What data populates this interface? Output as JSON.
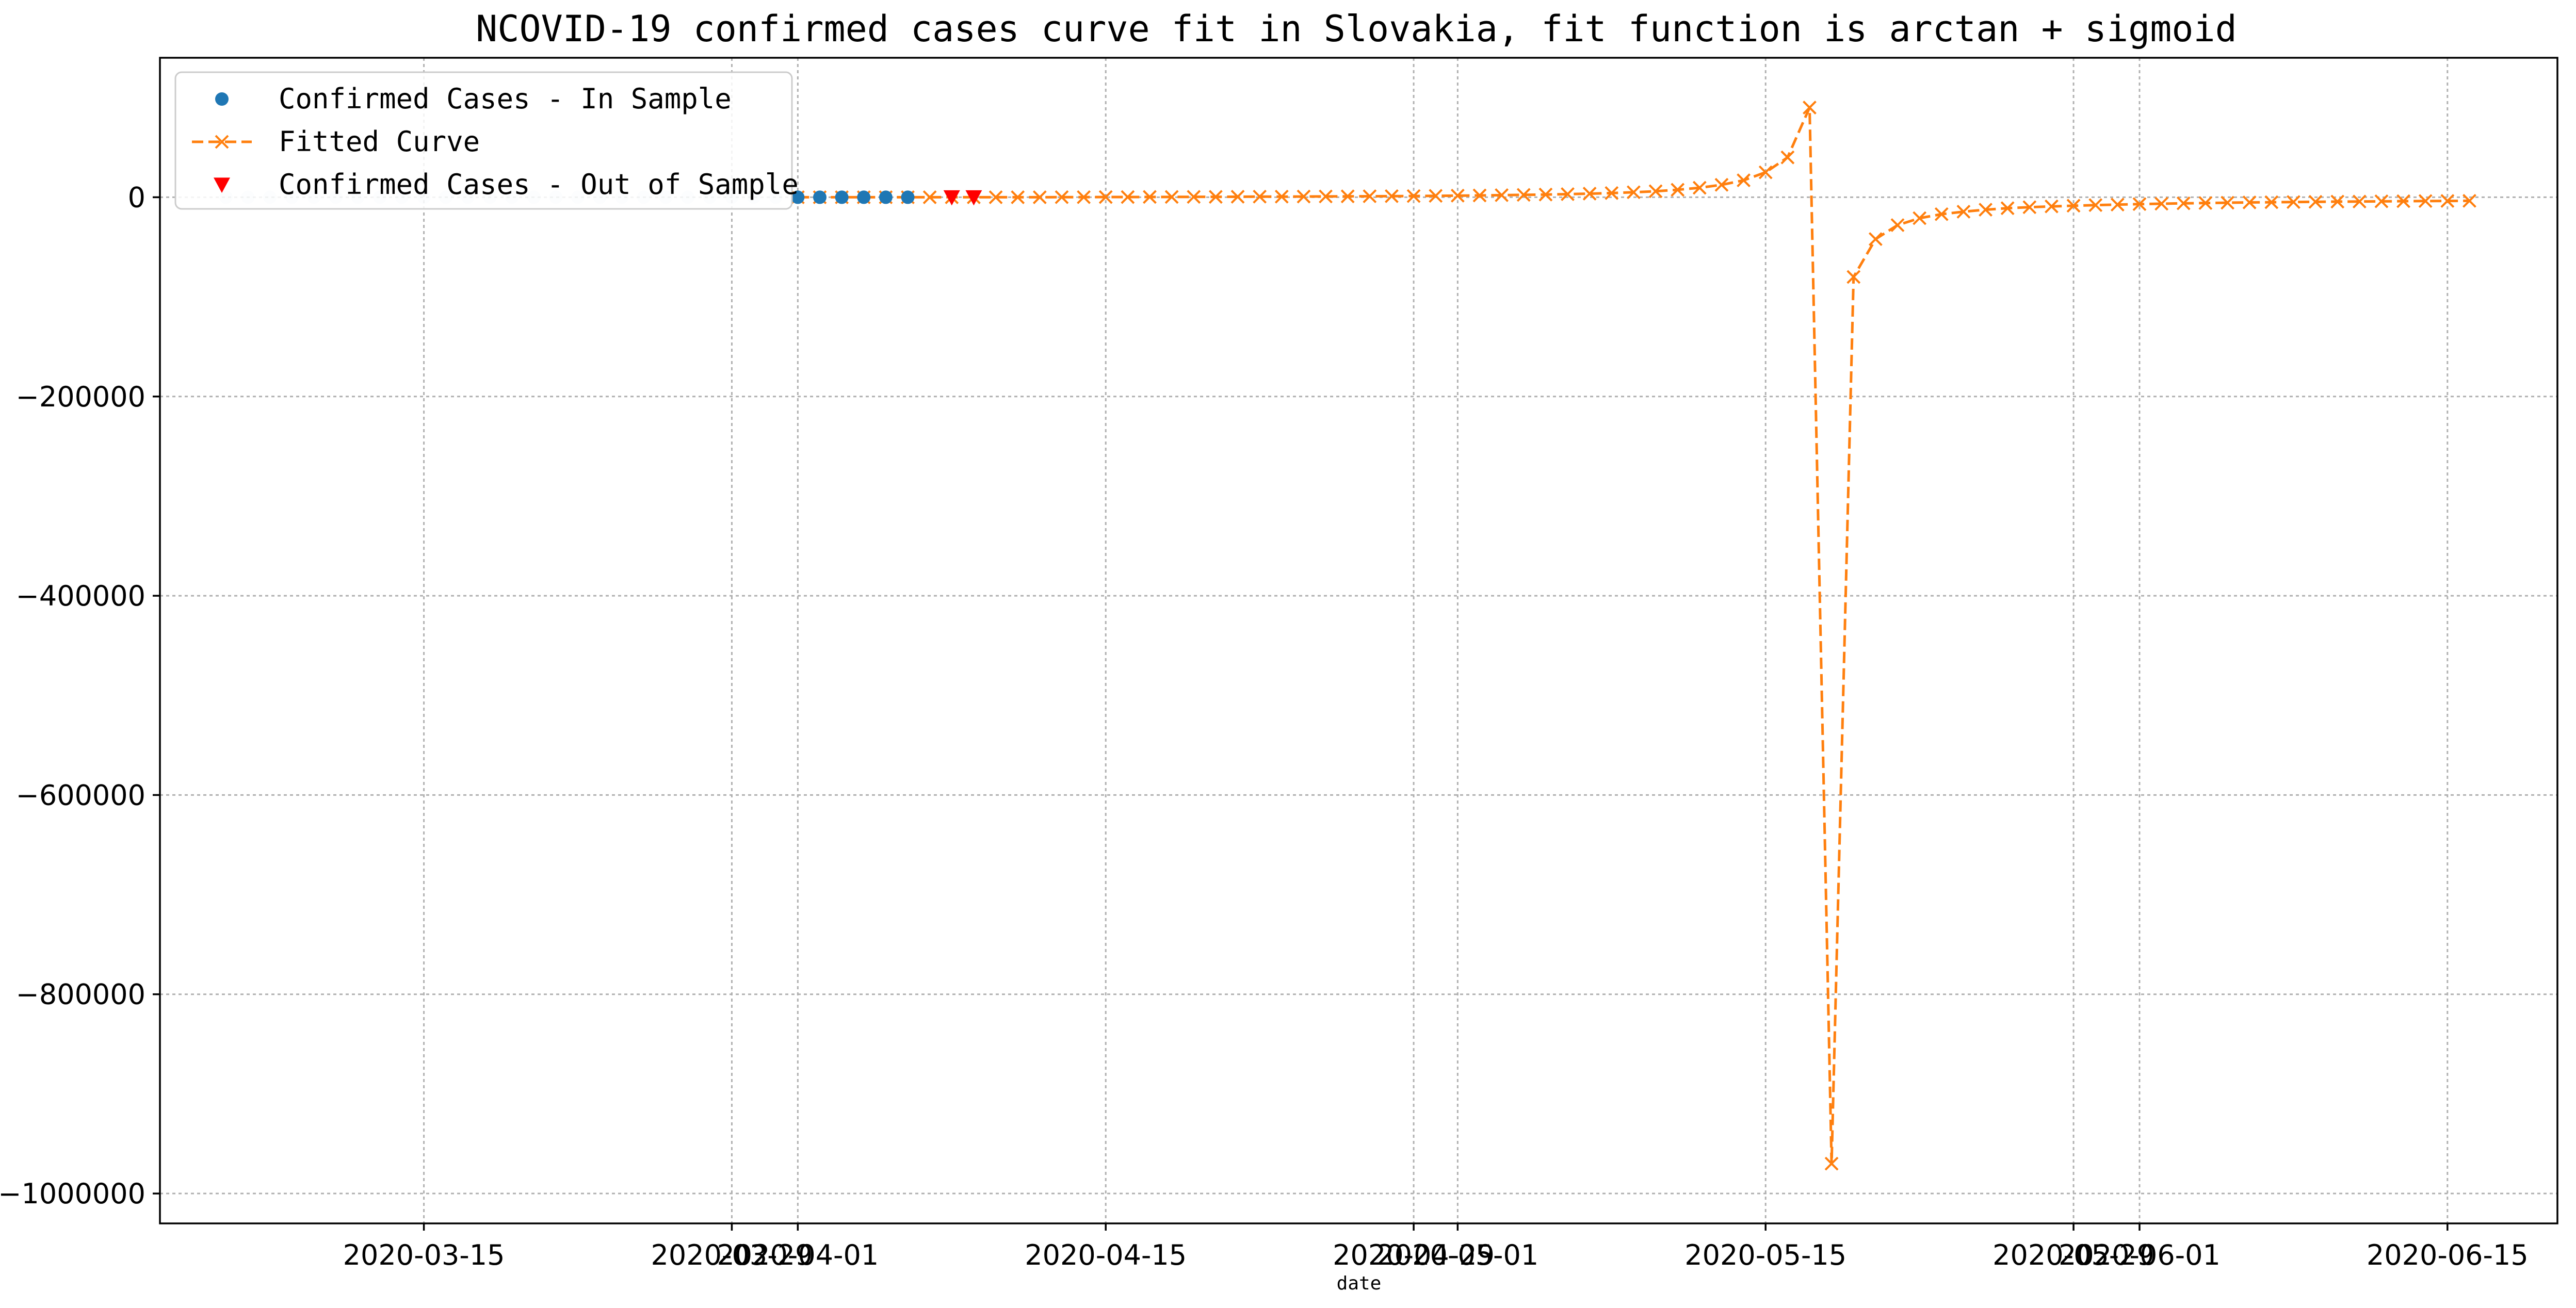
{
  "chart_data": {
    "type": "line",
    "title": "NCOVID-19 confirmed cases curve fit in Slovakia, fit function is arctan + sigmoid",
    "xlabel": "date",
    "ylabel": "",
    "x_type": "date",
    "xlim": [
      "2020-03-03",
      "2020-06-20"
    ],
    "ylim": [
      -1030000,
      140000
    ],
    "grid": true,
    "legend_position": "top-left",
    "x_ticks": [
      {
        "date": "2020-03-15",
        "label": "2020-03-15"
      },
      {
        "date": "2020-03-29",
        "label": "2020-03-29"
      },
      {
        "date": "2020-04-01",
        "label": "2020-04-01"
      },
      {
        "date": "2020-04-15",
        "label": "2020-04-15"
      },
      {
        "date": "2020-04-29",
        "label": "2020-04-29"
      },
      {
        "date": "2020-05-01",
        "label": "2020-05-01"
      },
      {
        "date": "2020-05-15",
        "label": "2020-05-15"
      },
      {
        "date": "2020-05-29",
        "label": "2020-05-29"
      },
      {
        "date": "2020-06-01",
        "label": "2020-06-01"
      },
      {
        "date": "2020-06-15",
        "label": "2020-06-15"
      }
    ],
    "y_ticks": [
      {
        "value": 0,
        "label": "0"
      },
      {
        "value": -200000,
        "label": "−200000"
      },
      {
        "value": -400000,
        "label": "−400000"
      },
      {
        "value": -600000,
        "label": "−600000"
      },
      {
        "value": -800000,
        "label": "−800000"
      },
      {
        "value": -1000000,
        "label": "−1000000"
      }
    ],
    "series": [
      {
        "name": "Confirmed Cases - In Sample",
        "kind": "scatter",
        "marker": "circle",
        "color": "#1f77b4",
        "points": [
          {
            "x": "2020-03-06",
            "y": 0,
            "opacity": 0.1
          },
          {
            "x": "2020-03-07",
            "y": 0,
            "opacity": 0.1
          },
          {
            "x": "2020-03-08",
            "y": 0,
            "opacity": 0.1
          },
          {
            "x": "2020-03-09",
            "y": 0,
            "opacity": 0.1
          },
          {
            "x": "2020-03-10",
            "y": 0,
            "opacity": 0.1
          },
          {
            "x": "2020-03-11",
            "y": 0,
            "opacity": 0.1
          },
          {
            "x": "2020-03-12",
            "y": 0,
            "opacity": 0.1
          },
          {
            "x": "2020-03-13",
            "y": 0,
            "opacity": 0.1
          },
          {
            "x": "2020-03-14",
            "y": 0,
            "opacity": 0.1
          },
          {
            "x": "2020-03-15",
            "y": 0,
            "opacity": 0.1
          },
          {
            "x": "2020-03-16",
            "y": 0,
            "opacity": 0.1
          },
          {
            "x": "2020-03-17",
            "y": 0,
            "opacity": 0.1
          },
          {
            "x": "2020-03-18",
            "y": 0,
            "opacity": 0.1
          },
          {
            "x": "2020-03-19",
            "y": 0,
            "opacity": 0.1
          },
          {
            "x": "2020-03-20",
            "y": 0,
            "opacity": 0.1
          },
          {
            "x": "2020-03-21",
            "y": 0,
            "opacity": 0.1
          },
          {
            "x": "2020-03-22",
            "y": 0,
            "opacity": 0.1
          },
          {
            "x": "2020-03-23",
            "y": 0,
            "opacity": 0.1
          },
          {
            "x": "2020-03-24",
            "y": 0,
            "opacity": 0.1
          },
          {
            "x": "2020-03-25",
            "y": 0,
            "opacity": 0.1
          },
          {
            "x": "2020-03-26",
            "y": 0,
            "opacity": 0.1
          },
          {
            "x": "2020-03-27",
            "y": 0,
            "opacity": 0.1
          },
          {
            "x": "2020-03-28",
            "y": 0,
            "opacity": 0.1
          },
          {
            "x": "2020-03-29",
            "y": 0,
            "opacity": 0.1
          },
          {
            "x": "2020-03-30",
            "y": 0,
            "opacity": 0.1
          },
          {
            "x": "2020-03-31",
            "y": 0,
            "opacity": 0.1
          },
          {
            "x": "2020-04-01",
            "y": 0,
            "opacity": 1
          },
          {
            "x": "2020-04-02",
            "y": 0,
            "opacity": 1
          },
          {
            "x": "2020-04-03",
            "y": 0,
            "opacity": 1
          },
          {
            "x": "2020-04-04",
            "y": 0,
            "opacity": 1
          },
          {
            "x": "2020-04-05",
            "y": 0,
            "opacity": 1
          },
          {
            "x": "2020-04-06",
            "y": 0,
            "opacity": 1
          }
        ]
      },
      {
        "name": "Fitted Curve",
        "kind": "line",
        "marker": "x",
        "line_style": "dashed",
        "color": "#ff7f0e",
        "x_start": "2020-04-01",
        "x_step_days": 1,
        "y": [
          0,
          0,
          0,
          0,
          0,
          0,
          0,
          0,
          0,
          0,
          0,
          0,
          100,
          100,
          200,
          200,
          300,
          300,
          400,
          400,
          500,
          600,
          600,
          700,
          800,
          900,
          1000,
          1100,
          1200,
          1400,
          1600,
          1800,
          2100,
          2400,
          2700,
          3100,
          3600,
          4200,
          5000,
          6000,
          7500,
          9500,
          12500,
          17000,
          25000,
          40000,
          90000,
          -970000,
          -80000,
          -42000,
          -28000,
          -21000,
          -17000,
          -14500,
          -12500,
          -11000,
          -10000,
          -9200,
          -8500,
          -7900,
          -7400,
          -6900,
          -6500,
          -6100,
          -5800,
          -5500,
          -5200,
          -5000,
          -4800,
          -4600,
          -4400,
          -4300,
          -4100,
          -3950,
          -3800,
          -3700,
          -3600
        ]
      },
      {
        "name": "Confirmed Cases - Out of Sample",
        "kind": "scatter",
        "marker": "triangle-down",
        "color": "#ff0000",
        "points": [
          {
            "x": "2020-04-08",
            "y": 0
          },
          {
            "x": "2020-04-09",
            "y": 0
          }
        ]
      }
    ]
  }
}
